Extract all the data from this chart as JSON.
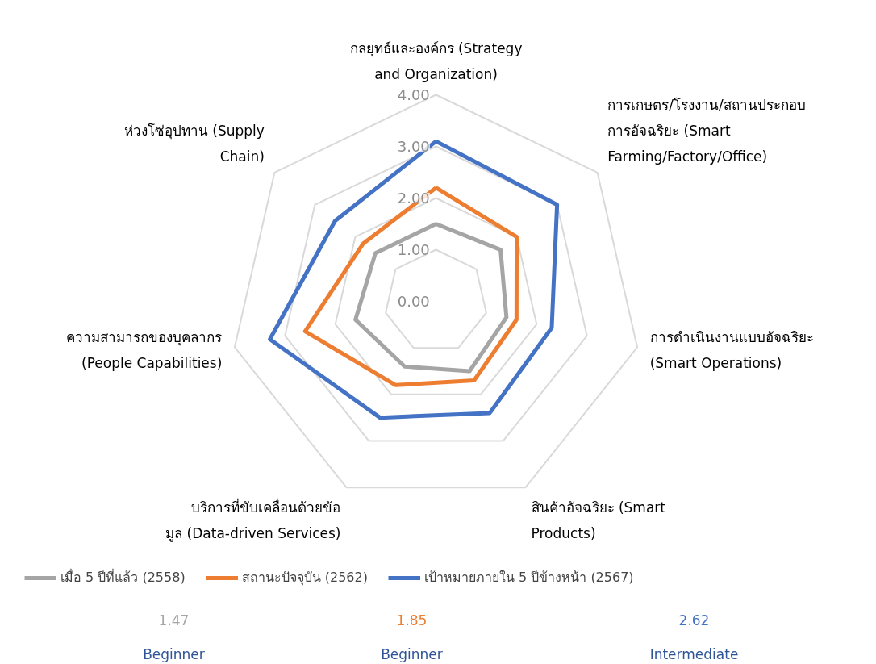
{
  "chart_data": {
    "type": "radar",
    "categories": [
      "กลยุทธ์และองค์กร (Strategy and Organization)",
      "การเกษตร/โรงงาน/สถานประกอบการอัจฉริยะ (Smart Farming/Factory/Office)",
      "การดำเนินงานแบบอัจฉริยะ (Smart Operations)",
      "สินค้าอัจฉริยะ (Smart Products)",
      "บริการที่ขับเคลื่อนด้วยข้อมูล (Data-driven Services)",
      "ความสามารถของบุคลากร (People Capabilities)",
      "ห่วงโซ่อุปทาน (Supply Chain)"
    ],
    "series": [
      {
        "name": "เมื่อ 5 ปีที่แล้ว (2558)",
        "color": "#a5a5a5",
        "values": [
          1.5,
          1.6,
          1.4,
          1.5,
          1.4,
          1.6,
          1.5
        ]
      },
      {
        "name": "สถานะปัจจุบัน (2562)",
        "color": "#ed7d31",
        "values": [
          2.2,
          2.0,
          1.6,
          1.7,
          1.8,
          2.6,
          1.8
        ]
      },
      {
        "name": "เป้าหมายภายใน 5 ปีข้างหน้า (2567)",
        "color": "#4472c4",
        "values": [
          3.1,
          3.0,
          2.3,
          2.4,
          2.5,
          3.3,
          2.5
        ]
      }
    ],
    "ylim": [
      0,
      4
    ],
    "yticks": [
      {
        "value": 0,
        "label": "0.00"
      },
      {
        "value": 1,
        "label": "1.00"
      },
      {
        "value": 2,
        "label": "2.00"
      },
      {
        "value": 3,
        "label": "3.00"
      },
      {
        "value": 4,
        "label": "4.00"
      }
    ],
    "legend": "bottom",
    "annotations": [
      "1.47",
      "1.85",
      "2.62",
      "Beginner",
      "Beginner",
      "Intermediate"
    ]
  }
}
